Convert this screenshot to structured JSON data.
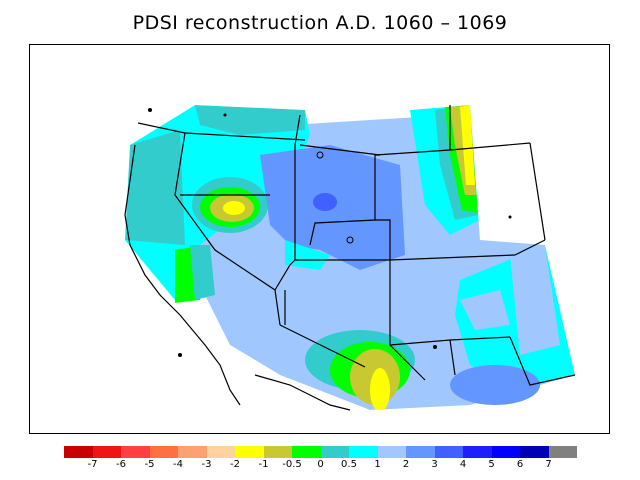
{
  "title": "PDSI reconstruction A.D. 1060 – 1069",
  "legend": {
    "colors": [
      "#c80000",
      "#f01414",
      "#ff4040",
      "#ff7040",
      "#ffa070",
      "#ffd2a0",
      "#ffff00",
      "#c8c832",
      "#00ff00",
      "#33cccc",
      "#00ffff",
      "#a0c8ff",
      "#6496ff",
      "#4060ff",
      "#1e1eff",
      "#0000ff",
      "#0000b4",
      "#808080"
    ],
    "labels": [
      "-7",
      "-6",
      "-5",
      "-4",
      "-3",
      "-2",
      "-1",
      "-0.5",
      "0",
      "0.5",
      "1",
      "2",
      "3",
      "4",
      "5",
      "6",
      "7"
    ]
  }
}
